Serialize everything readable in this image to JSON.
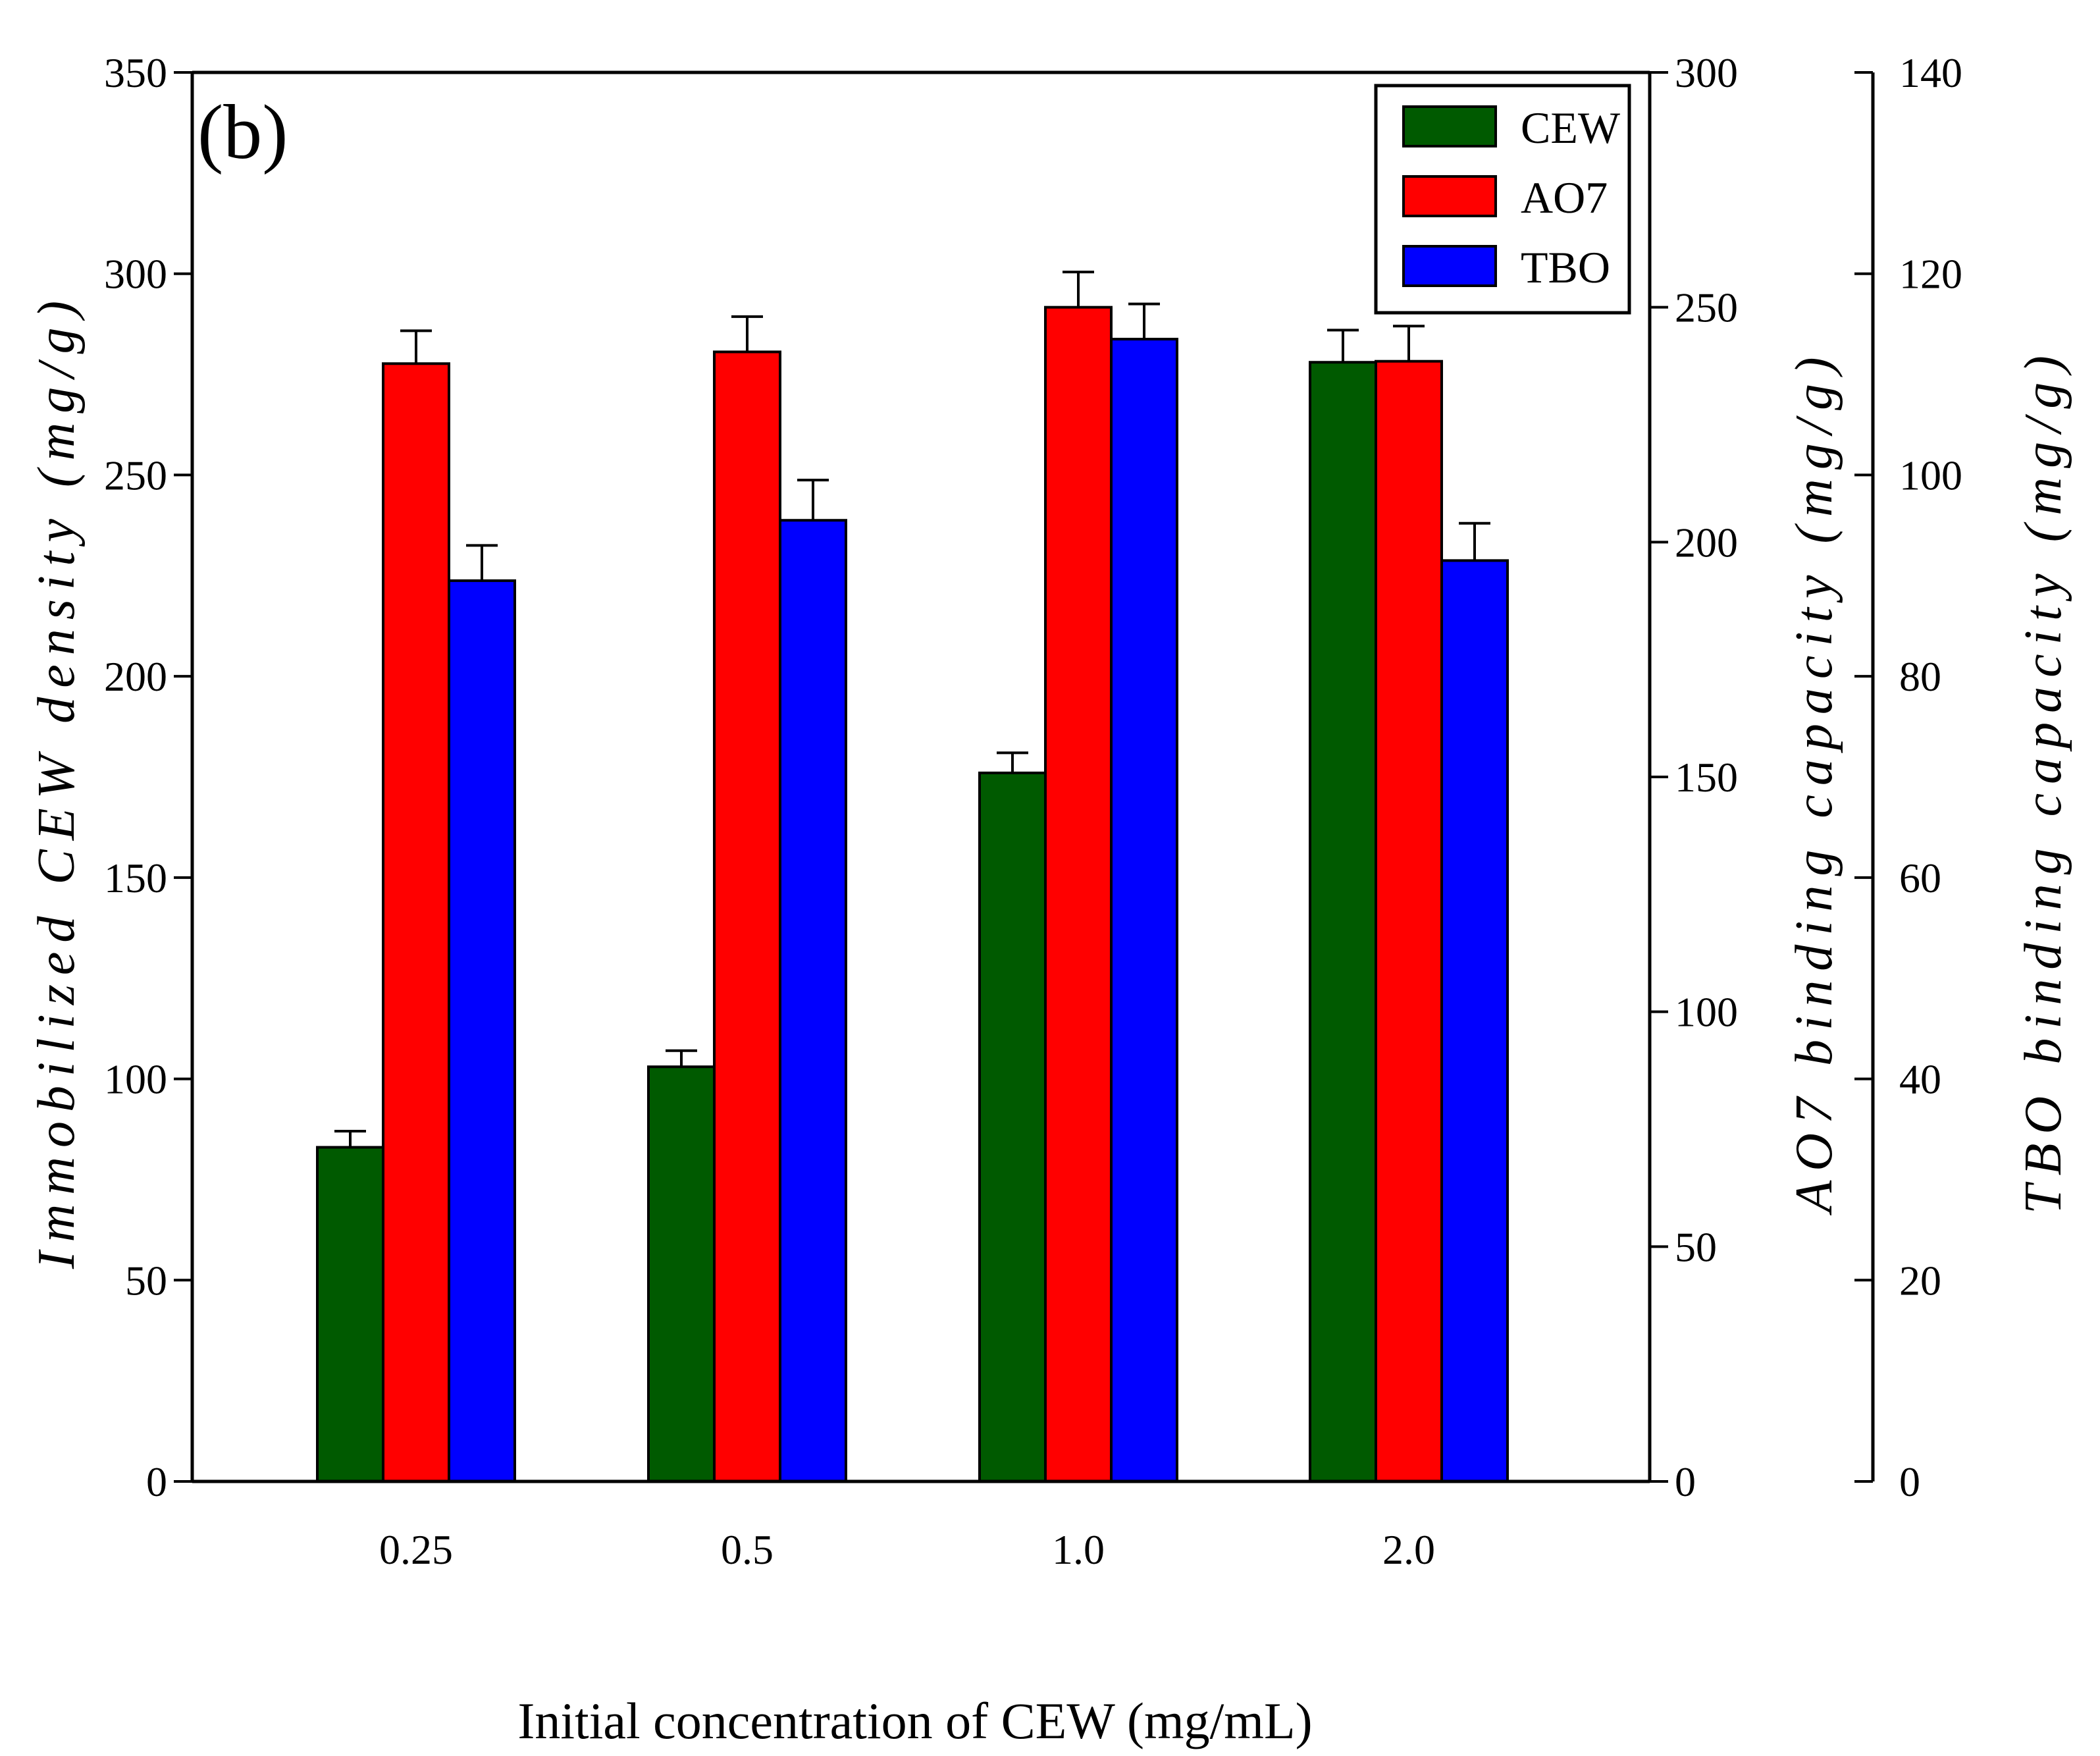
{
  "chart_data": {
    "type": "bar",
    "panel_label": "(b)",
    "categories": [
      "0.25",
      "0.5",
      "1.0",
      "2.0"
    ],
    "xlabel": "Initial concentration of CEW (mg/mL)",
    "axes": {
      "left": {
        "label": "Immobilized CEW density (mg/g)",
        "ylim": [
          0,
          350
        ],
        "ticks": [
          0,
          50,
          100,
          150,
          200,
          250,
          300,
          350
        ]
      },
      "right1": {
        "label": "AO7 binding capacity (mg/g)",
        "ylim": [
          0,
          300
        ],
        "ticks": [
          0,
          50,
          100,
          150,
          200,
          250,
          300
        ]
      },
      "right2": {
        "label": "TBO binding capacity (mg/g)",
        "ylim": [
          0,
          140
        ],
        "ticks": [
          0,
          20,
          40,
          60,
          80,
          100,
          120,
          140
        ]
      }
    },
    "series": [
      {
        "name": "CEW",
        "axis": "left",
        "color": "#005a00",
        "values": [
          83,
          103,
          176,
          278
        ],
        "errors": [
          4,
          4,
          5,
          8
        ]
      },
      {
        "name": "AO7",
        "axis": "right1",
        "color": "#ff0000",
        "values": [
          238,
          240.5,
          250,
          238.5
        ],
        "errors": [
          7,
          7.5,
          7.5,
          7.5
        ]
      },
      {
        "name": "TBO",
        "axis": "right2",
        "color": "#0000ff",
        "values": [
          89.5,
          95.5,
          113.5,
          91.5
        ],
        "errors": [
          3.5,
          4,
          3.5,
          3.7
        ]
      }
    ],
    "legend_position": "top-right",
    "grid": false
  }
}
